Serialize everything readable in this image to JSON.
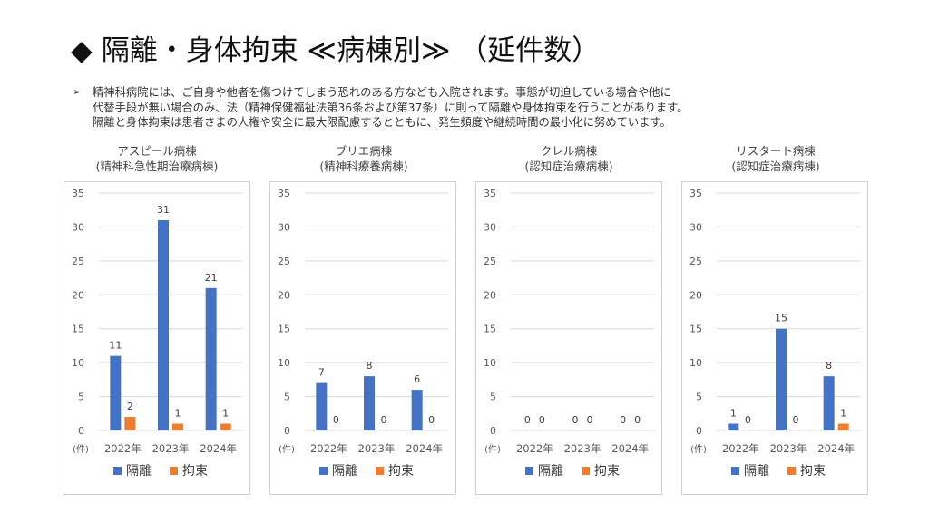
{
  "title": "◆ 隔離・身体拘束 ≪病棟別≫ （延件数）",
  "description": {
    "bullet": "➢",
    "lines": [
      "精神科病院には、ご自身や他者を傷つけてしまう恐れのある方なども入院されます。事態が切迫している場合や他に",
      "代替手段が無い場合のみ、法（精神保健福祉法第36条および第37条）に則って隔離や身体拘束を行うことがあります。",
      "隔離と身体拘束は患者さまの人権や安全に最大限配慮するとともに、発生頻度や継続時間の最小化に努めています。"
    ]
  },
  "colors": {
    "isolation": "#4472C4",
    "restraint": "#ED7D31",
    "grid": "#d9d9d9",
    "axis_text": "#595959"
  },
  "chart_data": [
    {
      "type": "bar",
      "ward_name": "アスピール病棟",
      "ward_type": "(精神科急性期治療病棟)",
      "categories": [
        "2022年",
        "2023年",
        "2024年"
      ],
      "unit_label": "(件)",
      "ylim": [
        0,
        35
      ],
      "yticks": [
        0,
        5,
        10,
        15,
        20,
        25,
        30,
        35
      ],
      "grid": true,
      "legend_position": "bottom",
      "series": [
        {
          "name": "隔離",
          "color": "#4472C4",
          "values": [
            11,
            31,
            21
          ]
        },
        {
          "name": "拘束",
          "color": "#ED7D31",
          "values": [
            2,
            1,
            1
          ]
        }
      ]
    },
    {
      "type": "bar",
      "ward_name": "ブリエ病棟",
      "ward_type": "(精神科療養病棟)",
      "categories": [
        "2022年",
        "2023年",
        "2024年"
      ],
      "unit_label": "(件)",
      "ylim": [
        0,
        35
      ],
      "yticks": [
        0,
        5,
        10,
        15,
        20,
        25,
        30,
        35
      ],
      "grid": true,
      "legend_position": "bottom",
      "series": [
        {
          "name": "隔離",
          "color": "#4472C4",
          "values": [
            7,
            8,
            6
          ]
        },
        {
          "name": "拘束",
          "color": "#ED7D31",
          "values": [
            0,
            0,
            0
          ]
        }
      ]
    },
    {
      "type": "bar",
      "ward_name": "クレル病棟",
      "ward_type": "(認知症治療病棟)",
      "categories": [
        "2022年",
        "2023年",
        "2024年"
      ],
      "unit_label": "(件)",
      "ylim": [
        0,
        35
      ],
      "yticks": [
        0,
        5,
        10,
        15,
        20,
        25,
        30,
        35
      ],
      "grid": true,
      "legend_position": "bottom",
      "series": [
        {
          "name": "隔離",
          "color": "#4472C4",
          "values": [
            0,
            0,
            0
          ]
        },
        {
          "name": "拘束",
          "color": "#ED7D31",
          "values": [
            0,
            0,
            0
          ]
        }
      ]
    },
    {
      "type": "bar",
      "ward_name": "リスタート病棟",
      "ward_type": "(認知症治療病棟)",
      "categories": [
        "2022年",
        "2023年",
        "2024年"
      ],
      "unit_label": "(件)",
      "ylim": [
        0,
        35
      ],
      "yticks": [
        0,
        5,
        10,
        15,
        20,
        25,
        30,
        35
      ],
      "grid": true,
      "legend_position": "bottom",
      "series": [
        {
          "name": "隔離",
          "color": "#4472C4",
          "values": [
            1,
            15,
            8
          ]
        },
        {
          "name": "拘束",
          "color": "#ED7D31",
          "values": [
            0,
            0,
            1
          ]
        }
      ]
    }
  ]
}
